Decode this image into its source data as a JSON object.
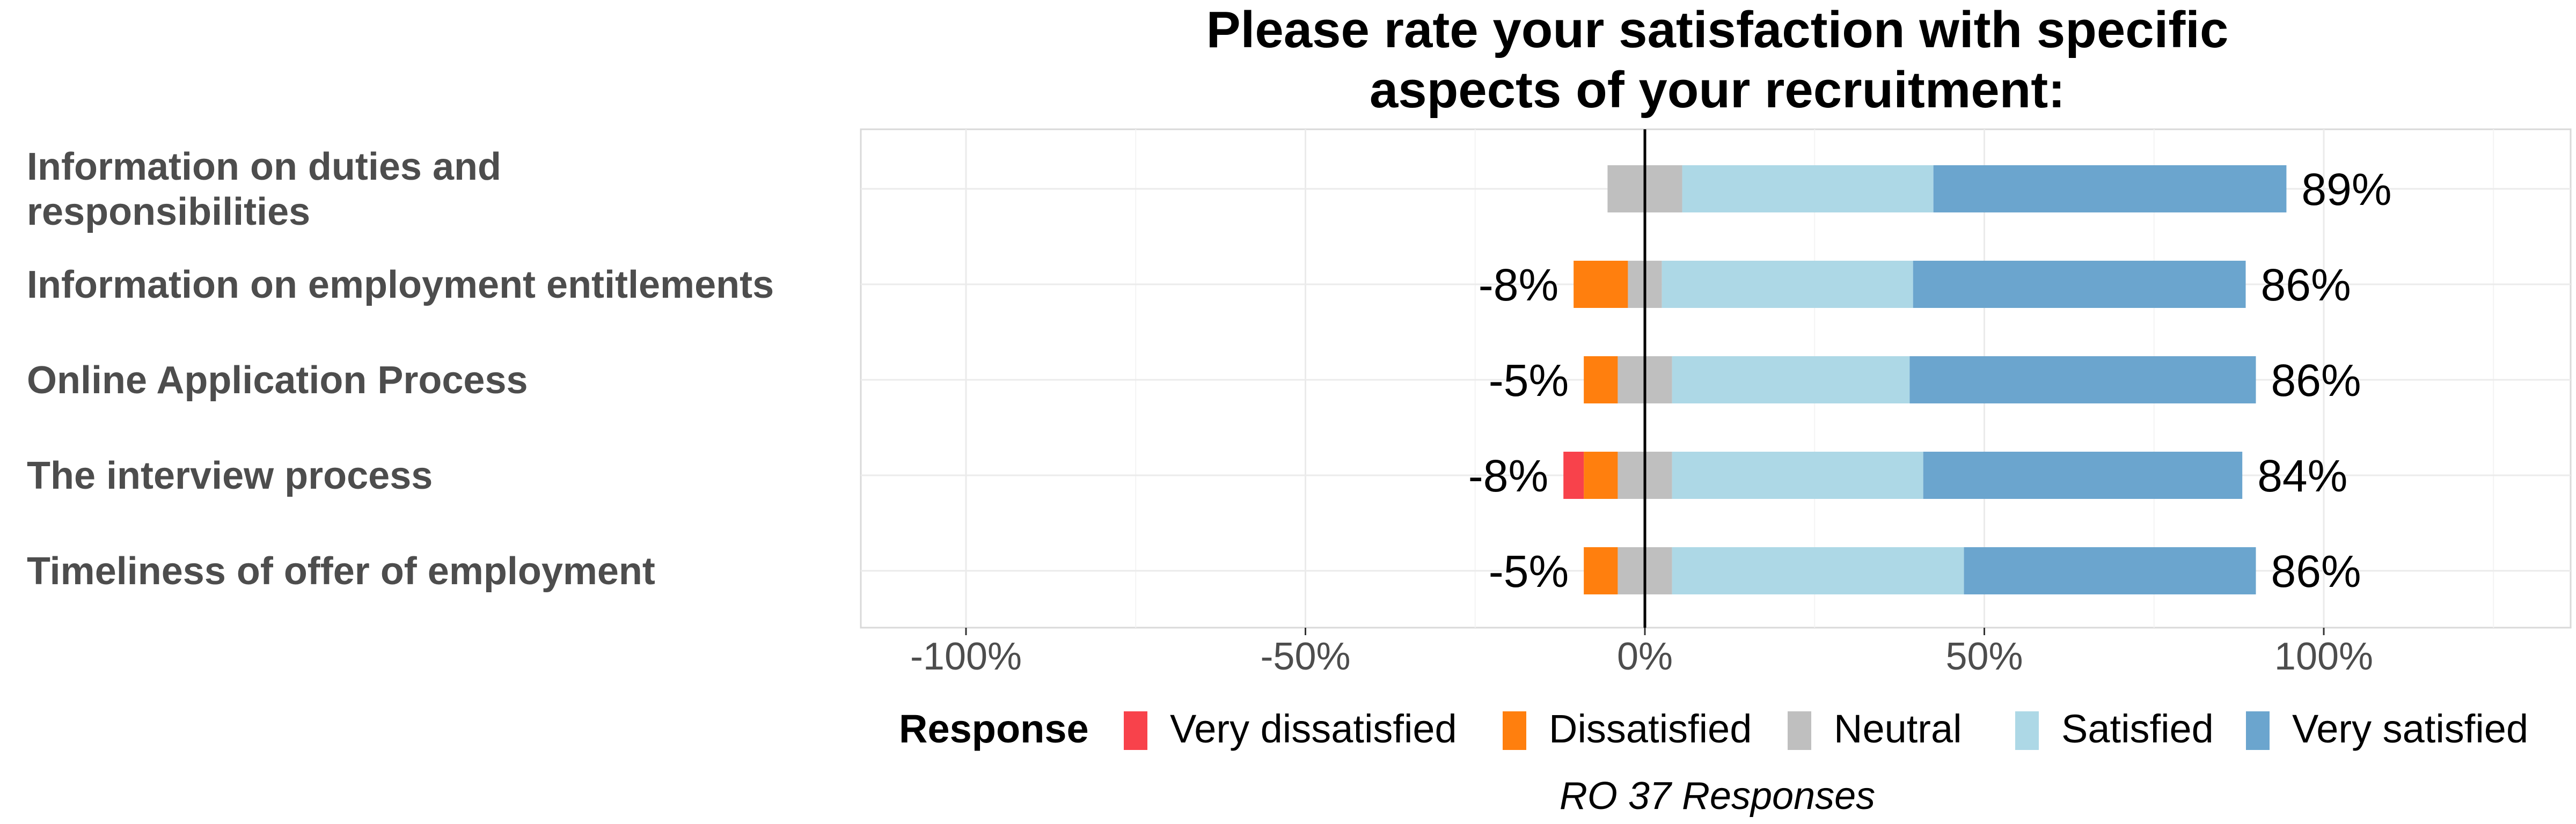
{
  "chart_data": {
    "type": "bar",
    "orientation": "horizontal",
    "stacked": "diverging",
    "title_lines": [
      "Please rate your satisfaction with specific",
      "aspects of your recruitment:"
    ],
    "categories": [
      [
        "Information on duties and",
        "responsibilities"
      ],
      [
        "Information on employment entitlements"
      ],
      [
        "Online Application Process"
      ],
      [
        "The interview process"
      ],
      [
        "Timeliness of offer of employment"
      ]
    ],
    "series": [
      {
        "name": "Very dissatisfied",
        "color": "#F8424B",
        "values": [
          0,
          0,
          0,
          -3,
          0
        ]
      },
      {
        "name": "Dissatisfied",
        "color": "#FF7F0E",
        "values": [
          0,
          -8,
          -5,
          -5,
          -5
        ]
      },
      {
        "name": "Neutral",
        "color": "#BFBFBF",
        "values": [
          11,
          5,
          8,
          8,
          8
        ]
      },
      {
        "name": "Satisfied",
        "color": "#ADD8E6",
        "values": [
          37,
          37,
          35,
          37,
          43
        ]
      },
      {
        "name": "Very satisfied",
        "color": "#6BA5CE",
        "values": [
          52,
          49,
          51,
          47,
          43
        ]
      }
    ],
    "left_labels": [
      "",
      "-8%",
      "-5%",
      "-8%",
      "-5%"
    ],
    "right_labels": [
      "89%",
      "86%",
      "86%",
      "84%",
      "86%"
    ],
    "x_ticks": [
      "-100%",
      "-50%",
      "0%",
      "50%",
      "100%"
    ],
    "x_tick_values": [
      -100,
      -50,
      0,
      50,
      100
    ],
    "xlim": [
      -110,
      125
    ],
    "grid": true,
    "legend": {
      "title": "Response",
      "position": "bottom"
    },
    "caption": "RO 37 Responses"
  }
}
